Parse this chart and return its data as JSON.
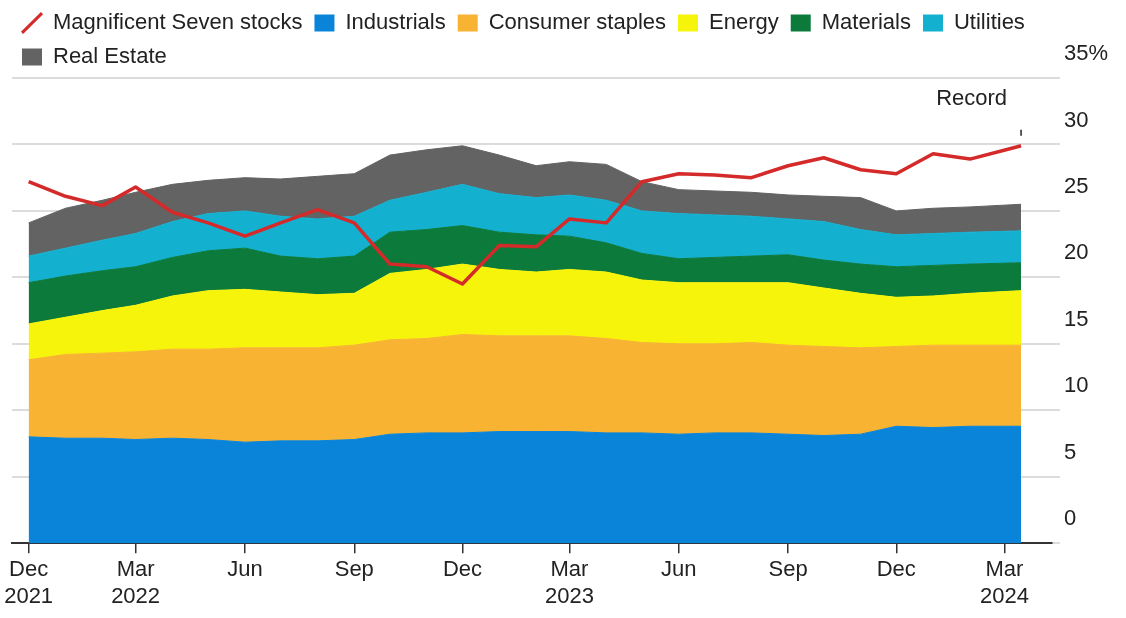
{
  "chart_data": {
    "type": "area",
    "stacked": true,
    "legend": "top left",
    "grid": "y",
    "marker": "none",
    "x": [
      "2021-12-01",
      "2022-01-01",
      "2022-02-01",
      "2022-03-01",
      "2022-04-01",
      "2022-05-01",
      "2022-06-01",
      "2022-07-01",
      "2022-08-01",
      "2022-09-01",
      "2022-10-01",
      "2022-11-01",
      "2022-12-01",
      "2023-01-01",
      "2023-02-01",
      "2023-03-01",
      "2023-04-01",
      "2023-05-01",
      "2023-06-01",
      "2023-07-01",
      "2023-08-01",
      "2023-09-01",
      "2023-10-01",
      "2023-11-01",
      "2023-12-01",
      "2024-01-01",
      "2024-02-01",
      "2024-03-15"
    ],
    "series": [
      {
        "name": "Magnificent Seven stocks",
        "type": "line",
        "color": "#d42a2a",
        "values": [
          27.2,
          26.1,
          25.4,
          26.8,
          24.9,
          24.1,
          23.1,
          24.1,
          25.1,
          24.1,
          21.0,
          20.8,
          19.5,
          22.4,
          22.3,
          24.4,
          24.1,
          27.2,
          27.8,
          27.7,
          27.5,
          28.4,
          29.0,
          28.1,
          27.8,
          29.3,
          28.9,
          29.9
        ]
      },
      {
        "name": "Industrials",
        "color": "#0a84d8",
        "values": [
          8.0,
          7.9,
          7.9,
          7.8,
          7.9,
          7.8,
          7.6,
          7.7,
          7.7,
          7.8,
          8.2,
          8.3,
          8.3,
          8.4,
          8.4,
          8.4,
          8.3,
          8.3,
          8.2,
          8.3,
          8.3,
          8.2,
          8.1,
          8.2,
          8.8,
          8.7,
          8.8,
          8.8
        ]
      },
      {
        "name": "Consumer staples",
        "color": "#f8b332",
        "values": [
          5.8,
          6.3,
          6.4,
          6.6,
          6.7,
          6.8,
          7.1,
          7.0,
          7.0,
          7.1,
          7.1,
          7.1,
          7.4,
          7.2,
          7.2,
          7.2,
          7.1,
          6.8,
          6.8,
          6.7,
          6.8,
          6.7,
          6.7,
          6.5,
          6.0,
          6.2,
          6.1,
          6.1
        ]
      },
      {
        "name": "Energy",
        "color": "#f7f40c",
        "values": [
          2.7,
          2.8,
          3.2,
          3.5,
          4.0,
          4.4,
          4.4,
          4.2,
          4.0,
          3.9,
          5.0,
          5.2,
          5.3,
          5.0,
          4.8,
          5.0,
          5.0,
          4.7,
          4.6,
          4.6,
          4.5,
          4.7,
          4.4,
          4.1,
          3.7,
          3.7,
          3.9,
          4.1
        ]
      },
      {
        "name": "Materials",
        "color": "#0b7a3b",
        "values": [
          3.1,
          3.1,
          3.0,
          2.9,
          2.9,
          3.0,
          3.1,
          2.7,
          2.7,
          2.8,
          3.1,
          3.0,
          2.9,
          2.8,
          2.8,
          2.5,
          2.2,
          2.0,
          1.8,
          1.9,
          2.0,
          2.1,
          2.1,
          2.2,
          2.3,
          2.3,
          2.2,
          2.1
        ]
      },
      {
        "name": "Utilities",
        "color": "#14b0cf",
        "values": [
          2.0,
          2.1,
          2.3,
          2.5,
          2.7,
          2.8,
          2.8,
          3.0,
          3.0,
          3.0,
          2.4,
          2.8,
          3.1,
          2.9,
          2.8,
          3.1,
          3.2,
          3.2,
          3.4,
          3.2,
          3.0,
          2.7,
          2.9,
          2.6,
          2.4,
          2.4,
          2.4,
          2.4
        ]
      },
      {
        "name": "Real Estate",
        "color": "#636363",
        "values": [
          2.5,
          3.0,
          3.0,
          3.1,
          2.8,
          2.5,
          2.5,
          2.8,
          3.2,
          3.2,
          3.4,
          3.2,
          2.9,
          2.9,
          2.4,
          2.5,
          2.7,
          2.2,
          1.8,
          1.8,
          1.8,
          1.8,
          1.9,
          2.4,
          1.8,
          1.9,
          1.9,
          2.0
        ]
      }
    ],
    "xlim": [
      "2021-11-17",
      "2024-04-10"
    ],
    "xticks": [
      {
        "value": "2021-12-01",
        "label": "Dec 2021"
      },
      {
        "value": "2022-03-01",
        "label": "Mar 2022"
      },
      {
        "value": "2022-06-01",
        "label": "Jun"
      },
      {
        "value": "2022-09-01",
        "label": "Sep"
      },
      {
        "value": "2022-12-01",
        "label": "Dec"
      },
      {
        "value": "2023-03-01",
        "label": "Mar 2023"
      },
      {
        "value": "2023-06-01",
        "label": "Jun"
      },
      {
        "value": "2023-09-01",
        "label": "Sep"
      },
      {
        "value": "2023-12-01",
        "label": "Dec"
      },
      {
        "value": "2024-03-01",
        "label": "Mar 2024"
      }
    ],
    "ylim": [
      0,
      35
    ],
    "yticks": [
      0,
      5,
      10,
      15,
      20,
      25,
      30,
      {
        "value": 35,
        "label": "35%"
      }
    ],
    "annotations": [
      {
        "text": "Record",
        "x": "2024-03-15",
        "y": 29.9
      }
    ]
  }
}
